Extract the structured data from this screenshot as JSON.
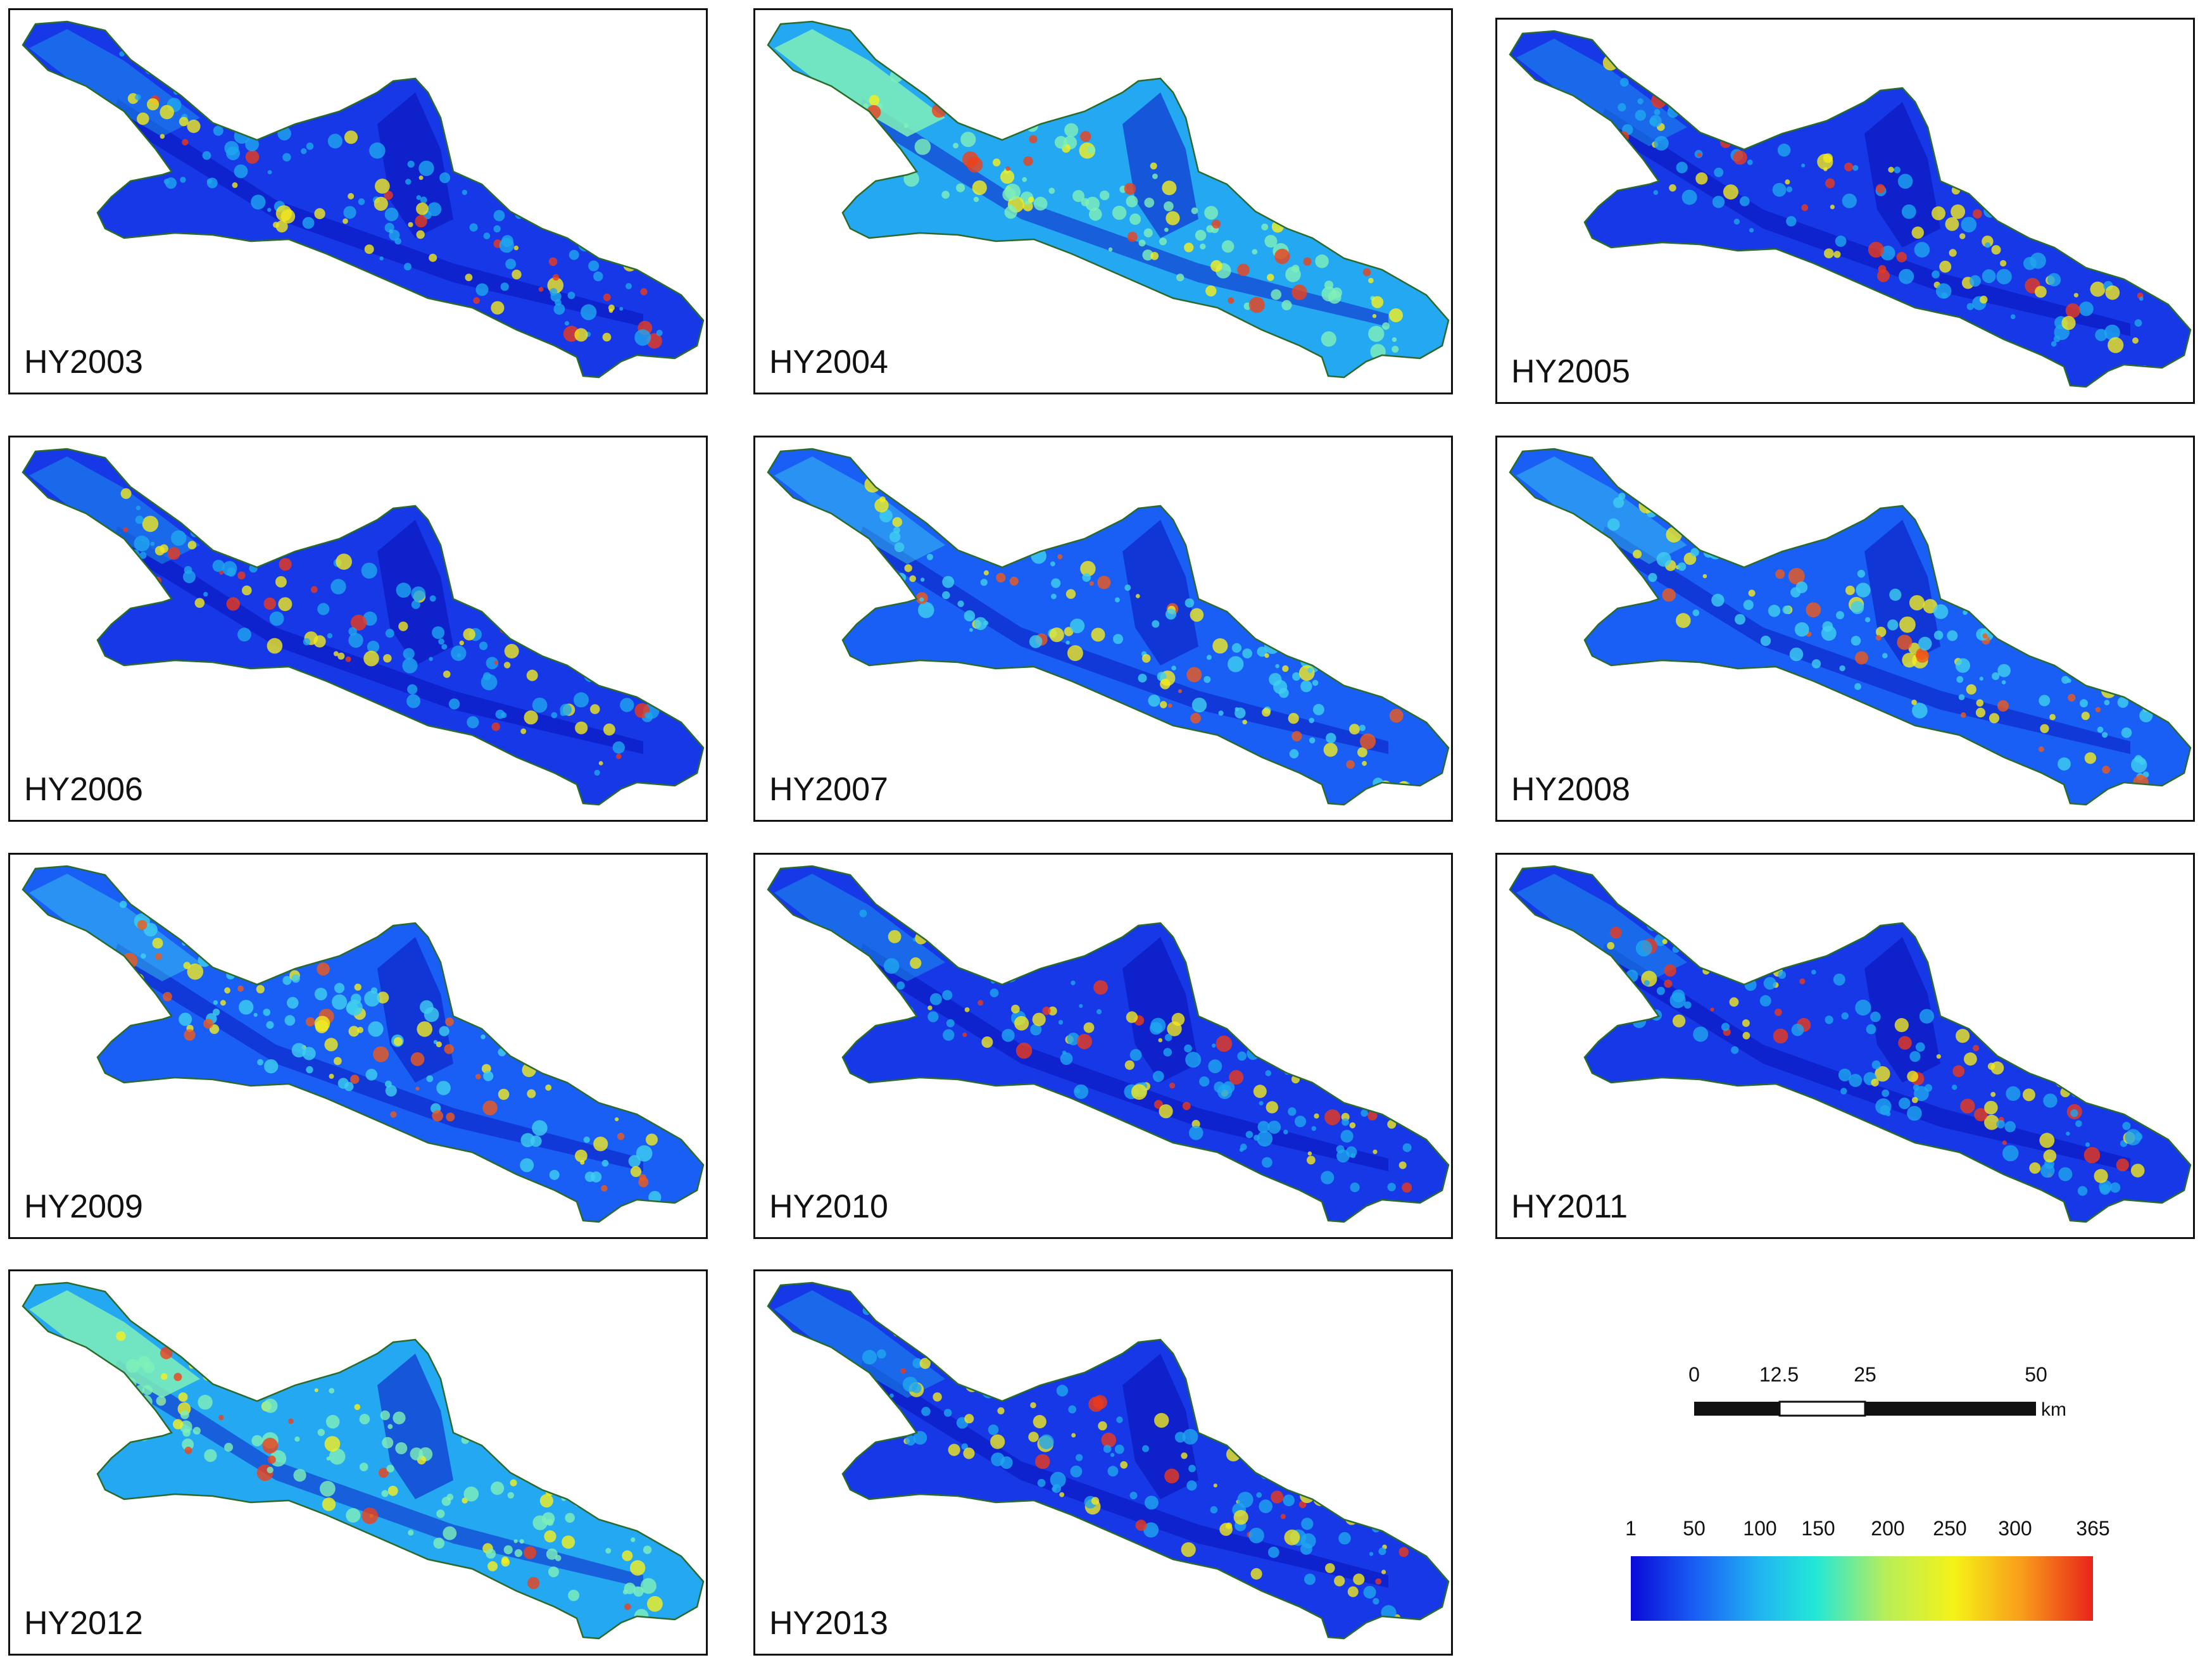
{
  "panels": [
    {
      "label": "HY2003",
      "tone": "dark"
    },
    {
      "label": "HY2004",
      "tone": "bright"
    },
    {
      "label": "HY2005",
      "tone": "dark"
    },
    {
      "label": "HY2006",
      "tone": "dark"
    },
    {
      "label": "HY2007",
      "tone": "mid"
    },
    {
      "label": "HY2008",
      "tone": "mid"
    },
    {
      "label": "HY2009",
      "tone": "mid"
    },
    {
      "label": "HY2010",
      "tone": "dark"
    },
    {
      "label": "HY2011",
      "tone": "dark"
    },
    {
      "label": "HY2012",
      "tone": "bright"
    },
    {
      "label": "HY2013",
      "tone": "dark"
    }
  ],
  "scale_bar": {
    "ticks": [
      "0",
      "12.5",
      "25",
      "50"
    ],
    "unit": "km"
  },
  "color_legend": {
    "ticks": [
      "1",
      "50",
      "100",
      "150",
      "200",
      "250",
      "300",
      "365"
    ],
    "colors": [
      "#0a0ad8",
      "#1a5ff5",
      "#21b5f2",
      "#22e8d8",
      "#b6ee5a",
      "#f5f218",
      "#f89a1a",
      "#e8241a"
    ]
  }
}
